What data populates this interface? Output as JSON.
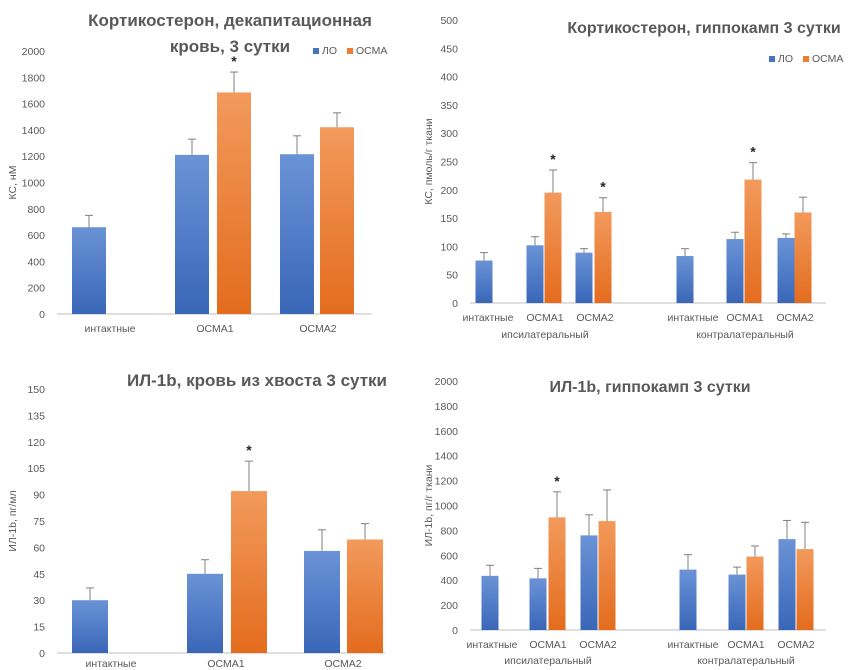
{
  "colors": {
    "lo": "#4472C4",
    "osma": "#ED7D31",
    "axis": "#BFBFBF",
    "text": "#595959",
    "err": "#808080"
  },
  "chart_data": [
    {
      "type": "bar",
      "title_lines": [
        "Кортикостерон, декапитационная",
        "кровь, 3 сутки"
      ],
      "ylabel": "КС, нМ",
      "ylim": [
        0,
        2000
      ],
      "yticks": [
        0,
        200,
        400,
        600,
        800,
        1000,
        1200,
        1400,
        1600,
        1800,
        2000
      ],
      "legend": "top-right",
      "categories": [
        "интактные",
        "ОСМА1",
        "ОСМА2"
      ],
      "series": [
        {
          "name": "ЛО",
          "values": [
            660,
            1210,
            1215
          ],
          "errors": [
            90,
            120,
            140
          ]
        },
        {
          "name": "ОСМА",
          "values": [
            null,
            1685,
            1420
          ],
          "errors": [
            null,
            155,
            110
          ]
        }
      ],
      "significance": [
        {
          "category": 1,
          "series": 1,
          "mark": "*"
        }
      ]
    },
    {
      "type": "bar",
      "title_lines": [
        "Кортикостерон, гиппокамп 3 сутки"
      ],
      "ylabel": "КС, пмоль/г ткани",
      "ylim": [
        0,
        500
      ],
      "yticks": [
        0,
        50,
        100,
        150,
        200,
        250,
        300,
        350,
        400,
        450,
        500
      ],
      "legend": "top-right",
      "categories": [
        "интактные",
        "ОСМА1",
        "ОСМА2",
        "интактные",
        "ОСМА1",
        "ОСМА2"
      ],
      "group_labels": [
        {
          "text": "ипсилатеральный",
          "category": 1
        },
        {
          "text": "контралатеральный",
          "category": 4
        }
      ],
      "series": [
        {
          "name": "ЛО",
          "values": [
            75,
            102,
            89,
            83,
            113,
            115
          ],
          "errors": [
            14,
            15,
            7,
            13,
            12,
            7
          ]
        },
        {
          "name": "ОСМА",
          "values": [
            null,
            195,
            161,
            null,
            218,
            160
          ],
          "errors": [
            null,
            40,
            25,
            null,
            30,
            27
          ]
        }
      ],
      "significance": [
        {
          "category": 1,
          "series": 1,
          "mark": "*"
        },
        {
          "category": 2,
          "series": 1,
          "mark": "*"
        },
        {
          "category": 4,
          "series": 1,
          "mark": "*"
        }
      ]
    },
    {
      "type": "bar",
      "title_lines": [
        "ИЛ-1b, кровь из хвоста 3 сутки"
      ],
      "ylabel": "ИЛ-1b, пг/мл",
      "ylim": [
        0,
        150
      ],
      "yticks": [
        0,
        15,
        30,
        45,
        60,
        75,
        90,
        105,
        120,
        135,
        150
      ],
      "categories": [
        "интактные",
        "ОСМА1",
        "ОСМА2"
      ],
      "series": [
        {
          "name": "ЛО",
          "values": [
            30,
            45,
            58
          ],
          "errors": [
            7,
            8,
            12
          ]
        },
        {
          "name": "ОСМА",
          "values": [
            null,
            92,
            64.5
          ],
          "errors": [
            null,
            17,
            9
          ]
        }
      ],
      "significance": [
        {
          "category": 1,
          "series": 1,
          "mark": "*"
        }
      ]
    },
    {
      "type": "bar",
      "title_lines": [
        "ИЛ-1b, гиппокамп 3 сутки"
      ],
      "ylabel": "ИЛ-1b, пг/г ткани",
      "ylim": [
        0,
        2000
      ],
      "yticks": [
        0,
        200,
        400,
        600,
        800,
        1000,
        1200,
        1400,
        1600,
        1800,
        2000
      ],
      "categories": [
        "интактные",
        "ОСМА1",
        "ОСМА2",
        "интактные",
        "ОСМА1",
        "ОСМА2"
      ],
      "group_labels": [
        {
          "text": "ипсилатеральный",
          "category": 1
        },
        {
          "text": "контралатеральный",
          "category": 4
        }
      ],
      "series": [
        {
          "name": "ЛО",
          "values": [
            435,
            415,
            760,
            485,
            445,
            730
          ],
          "errors": [
            85,
            80,
            165,
            120,
            60,
            150
          ]
        },
        {
          "name": "ОСМА",
          "values": [
            null,
            905,
            875,
            null,
            590,
            650
          ],
          "errors": [
            null,
            205,
            250,
            null,
            85,
            215
          ]
        }
      ],
      "significance": [
        {
          "category": 1,
          "series": 1,
          "mark": "*"
        }
      ]
    }
  ]
}
